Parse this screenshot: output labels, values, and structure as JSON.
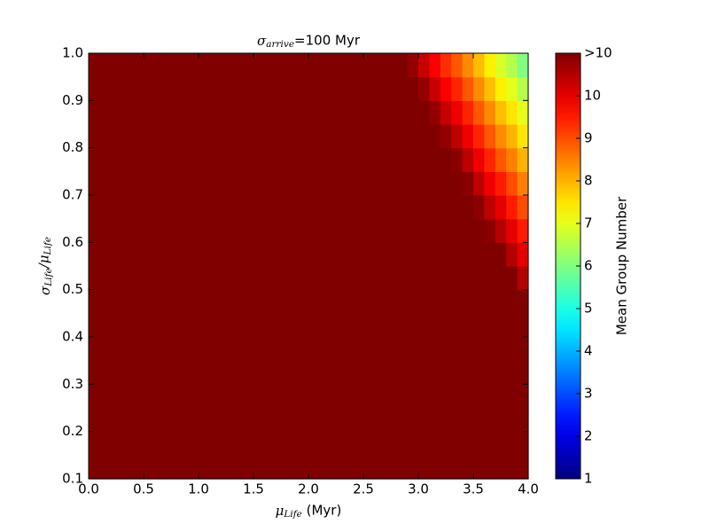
{
  "chart_data": {
    "type": "heatmap",
    "title": [
      {
        "text": "σ"
      },
      {
        "sub": "arrive"
      },
      {
        "text": "=100 Myr"
      }
    ],
    "xlabel": [
      {
        "text": "μ"
      },
      {
        "sub": "Life"
      },
      {
        "text": " (Myr)"
      }
    ],
    "ylabel": [
      {
        "text": "σ"
      },
      {
        "sub": "Life"
      },
      {
        "text": "/μ"
      },
      {
        "sub": "Life"
      }
    ],
    "colorbar_label": "Mean Group Number",
    "colormap": "jet",
    "x": [
      0.05,
      0.15,
      0.25,
      0.35,
      0.45,
      0.55,
      0.65,
      0.75,
      0.85,
      0.95,
      1.05,
      1.15,
      1.25,
      1.35,
      1.45,
      1.55,
      1.65,
      1.75,
      1.85,
      1.95,
      2.05,
      2.15,
      2.25,
      2.35,
      2.45,
      2.55,
      2.65,
      2.75,
      2.85,
      2.95,
      3.05,
      3.15,
      3.25,
      3.35,
      3.45,
      3.55,
      3.65,
      3.75,
      3.85,
      3.95
    ],
    "y": [
      0.125,
      0.175,
      0.225,
      0.275,
      0.325,
      0.375,
      0.425,
      0.475,
      0.525,
      0.575,
      0.625,
      0.675,
      0.725,
      0.775,
      0.825,
      0.875,
      0.925,
      0.975
    ],
    "z": [
      [
        11,
        11,
        11,
        11,
        11,
        11,
        11,
        11,
        11,
        11,
        11,
        11,
        11,
        11,
        11,
        11,
        11,
        11,
        11,
        11,
        11,
        11,
        11,
        11,
        11,
        11,
        11,
        11,
        11,
        11,
        11,
        11,
        11,
        11,
        11,
        11,
        11,
        11,
        11,
        11
      ],
      [
        11,
        11,
        11,
        11,
        11,
        11,
        11,
        11,
        11,
        11,
        11,
        11,
        11,
        11,
        11,
        11,
        11,
        11,
        11,
        11,
        11,
        11,
        11,
        11,
        11,
        11,
        11,
        11,
        11,
        11,
        11,
        11,
        11,
        11,
        11,
        11,
        11,
        11,
        11,
        11
      ],
      [
        11,
        11,
        11,
        11,
        11,
        11,
        11,
        11,
        11,
        11,
        11,
        11,
        11,
        11,
        11,
        11,
        11,
        11,
        11,
        11,
        11,
        11,
        11,
        11,
        11,
        11,
        11,
        11,
        11,
        11,
        11,
        11,
        11,
        11,
        11,
        11,
        11,
        11,
        11,
        11
      ],
      [
        11,
        11,
        11,
        11,
        11,
        11,
        11,
        11,
        11,
        11,
        11,
        11,
        11,
        11,
        11,
        11,
        11,
        11,
        11,
        11,
        11,
        11,
        11,
        11,
        11,
        11,
        11,
        11,
        11,
        11,
        11,
        11,
        11,
        11,
        11,
        11,
        11,
        11,
        11,
        11
      ],
      [
        11,
        11,
        11,
        11,
        11,
        11,
        11,
        11,
        11,
        11,
        11,
        11,
        11,
        11,
        11,
        11,
        11,
        11,
        11,
        11,
        11,
        11,
        11,
        11,
        11,
        11,
        11,
        11,
        11,
        11,
        11,
        11,
        11,
        11,
        11,
        11,
        11,
        11,
        11,
        11
      ],
      [
        11,
        11,
        11,
        11,
        11,
        11,
        11,
        11,
        11,
        11,
        11,
        11,
        11,
        11,
        11,
        11,
        11,
        11,
        11,
        11,
        11,
        11,
        11,
        11,
        11,
        11,
        11,
        11,
        11,
        11,
        11,
        11,
        11,
        11,
        11,
        11,
        11,
        11,
        11,
        11
      ],
      [
        11,
        11,
        11,
        11,
        11,
        11,
        11,
        11,
        11,
        11,
        11,
        11,
        11,
        11,
        11,
        11,
        11,
        11,
        11,
        11,
        11,
        11,
        11,
        11,
        11,
        11,
        11,
        11,
        11,
        11,
        11,
        11,
        11,
        11,
        11,
        11,
        11,
        11,
        11,
        11
      ],
      [
        11,
        11,
        11,
        11,
        11,
        11,
        11,
        11,
        11,
        11,
        11,
        11,
        11,
        11,
        11,
        11,
        11,
        11,
        11,
        11,
        11,
        11,
        11,
        11,
        11,
        11,
        11,
        11,
        11,
        11,
        11,
        11,
        11,
        11,
        11,
        11,
        11,
        11,
        11,
        11
      ],
      [
        11,
        11,
        11,
        11,
        11,
        11,
        11,
        11,
        11,
        11,
        11,
        11,
        11,
        11,
        11,
        11,
        11,
        11,
        11,
        11,
        11,
        11,
        11,
        11,
        11,
        11,
        11,
        11,
        11,
        11,
        11,
        11,
        11,
        11,
        11,
        11,
        11,
        11,
        11,
        10.5
      ],
      [
        11,
        11,
        11,
        11,
        11,
        11,
        11,
        11,
        11,
        11,
        11,
        11,
        11,
        11,
        11,
        11,
        11,
        11,
        11,
        11,
        11,
        11,
        11,
        11,
        11,
        11,
        11,
        11,
        11,
        11,
        11,
        11,
        11,
        11,
        11,
        11,
        11,
        11,
        10.5,
        10.0
      ],
      [
        11,
        11,
        11,
        11,
        11,
        11,
        11,
        11,
        11,
        11,
        11,
        11,
        11,
        11,
        11,
        11,
        11,
        11,
        11,
        11,
        11,
        11,
        11,
        11,
        11,
        11,
        11,
        11,
        11,
        11,
        11,
        11,
        11,
        11,
        11,
        11,
        10.9,
        10.5,
        10.0,
        9.5
      ],
      [
        11,
        11,
        11,
        11,
        11,
        11,
        11,
        11,
        11,
        11,
        11,
        11,
        11,
        11,
        11,
        11,
        11,
        11,
        11,
        11,
        11,
        11,
        11,
        11,
        11,
        11,
        11,
        11,
        11,
        11,
        11,
        11,
        11,
        11,
        11,
        10.9,
        10.4,
        10.0,
        9.5,
        9.0
      ],
      [
        11,
        11,
        11,
        11,
        11,
        11,
        11,
        11,
        11,
        11,
        11,
        11,
        11,
        11,
        11,
        11,
        11,
        11,
        11,
        11,
        11,
        11,
        11,
        11,
        11,
        11,
        11,
        11,
        11,
        11,
        11,
        11,
        11,
        11,
        10.9,
        10.4,
        9.9,
        9.5,
        9.0,
        8.5
      ],
      [
        11,
        11,
        11,
        11,
        11,
        11,
        11,
        11,
        11,
        11,
        11,
        11,
        11,
        11,
        11,
        11,
        11,
        11,
        11,
        11,
        11,
        11,
        11,
        11,
        11,
        11,
        11,
        11,
        11,
        11,
        11,
        11,
        11,
        10.9,
        10.4,
        9.9,
        9.4,
        8.9,
        8.5,
        8.0
      ],
      [
        11,
        11,
        11,
        11,
        11,
        11,
        11,
        11,
        11,
        11,
        11,
        11,
        11,
        11,
        11,
        11,
        11,
        11,
        11,
        11,
        11,
        11,
        11,
        11,
        11,
        11,
        11,
        11,
        11,
        11,
        11,
        11,
        10.8,
        10.4,
        9.9,
        9.4,
        8.9,
        8.4,
        8.0,
        7.5
      ],
      [
        11,
        11,
        11,
        11,
        11,
        11,
        11,
        11,
        11,
        11,
        11,
        11,
        11,
        11,
        11,
        11,
        11,
        11,
        11,
        11,
        11,
        11,
        11,
        11,
        11,
        11,
        11,
        11,
        11,
        11,
        11,
        10.8,
        10.3,
        9.9,
        9.4,
        8.9,
        8.4,
        7.9,
        7.5,
        7.0
      ],
      [
        11,
        11,
        11,
        11,
        11,
        11,
        11,
        11,
        11,
        11,
        11,
        11,
        11,
        11,
        11,
        11,
        11,
        11,
        11,
        11,
        11,
        11,
        11,
        11,
        11,
        11,
        11,
        11,
        11,
        11,
        10.8,
        10.3,
        9.8,
        9.4,
        8.9,
        8.4,
        7.9,
        7.4,
        7.0,
        6.5
      ],
      [
        11,
        11,
        11,
        11,
        11,
        11,
        11,
        11,
        11,
        11,
        11,
        11,
        11,
        11,
        11,
        11,
        11,
        11,
        11,
        11,
        11,
        11,
        11,
        11,
        11,
        11,
        11,
        11,
        11,
        10.8,
        10.3,
        9.8,
        9.3,
        8.9,
        8.4,
        7.9,
        7.4,
        6.9,
        6.5,
        6.0
      ]
    ],
    "xlim": [
      0,
      4
    ],
    "ylim": [
      0.1,
      1
    ],
    "xticks": [
      {
        "value": 0,
        "label": "0.0"
      },
      0.5,
      {
        "value": 1,
        "label": "1.0"
      },
      1.5,
      {
        "value": 2,
        "label": "2.0"
      },
      2.5,
      {
        "value": 3,
        "label": "3.0"
      },
      3.5,
      {
        "value": 4,
        "label": "4.0"
      }
    ],
    "yticks": [
      0.1,
      0.2,
      0.3,
      0.4,
      0.5,
      0.6,
      0.7,
      0.8,
      0.9,
      {
        "value": 1,
        "label": "1.0"
      }
    ],
    "clim": [
      1,
      11
    ],
    "cticks": [
      1,
      2,
      3,
      4,
      5,
      6,
      7,
      8,
      9,
      10,
      {
        "value": 11,
        "label": ">10"
      }
    ]
  }
}
